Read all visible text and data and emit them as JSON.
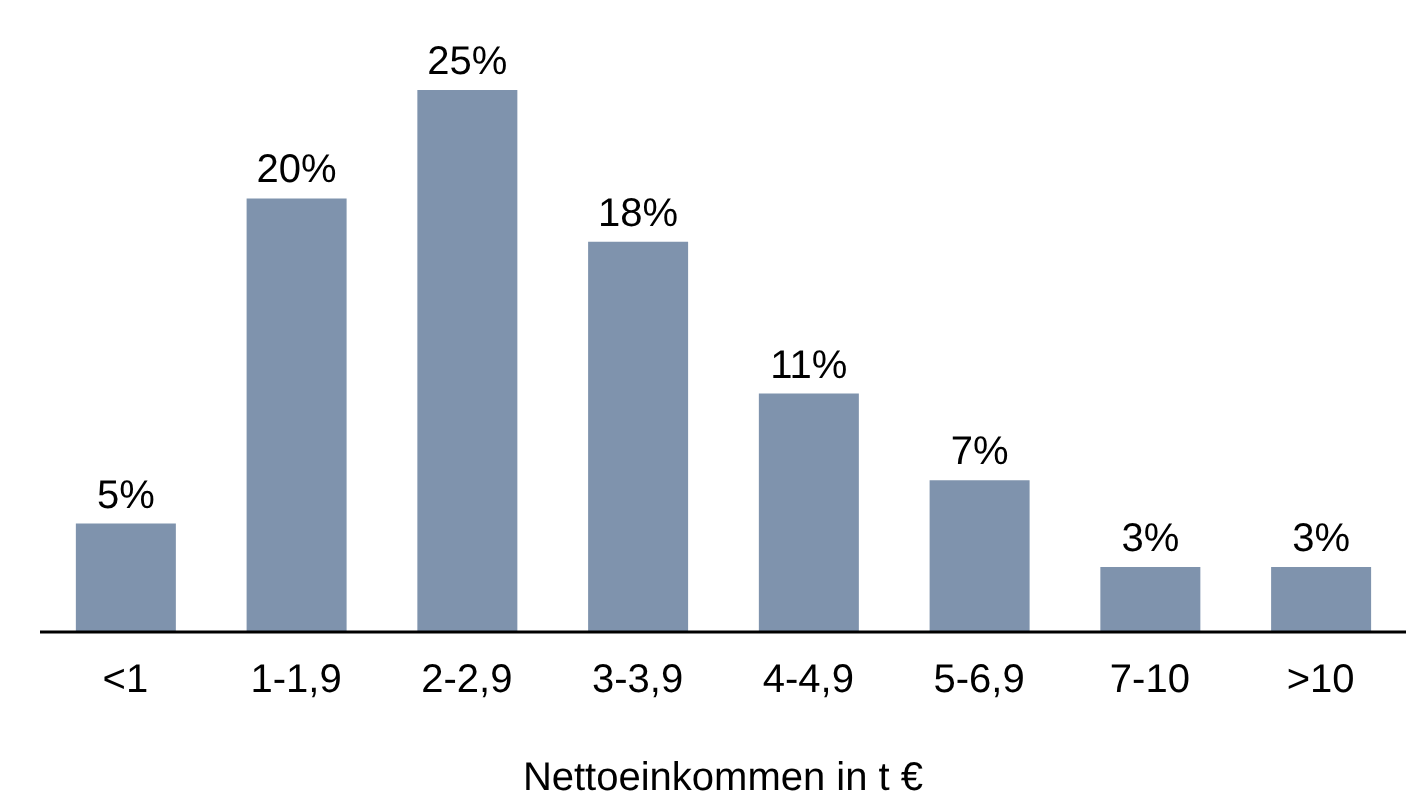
{
  "chart_data": {
    "type": "bar",
    "xlabel": "Nettoeinkommen in t €",
    "categories": [
      "<1",
      "1-1,9",
      "2-2,9",
      "3-3,9",
      "4-4,9",
      "5-6,9",
      "7-10",
      ">10"
    ],
    "values": [
      5,
      20,
      25,
      18,
      11,
      7,
      3,
      3
    ],
    "value_labels": [
      "5%",
      "20%",
      "25%",
      "18%",
      "11%",
      "7%",
      "3%",
      "3%"
    ],
    "color": "#7f93ad",
    "grid": false,
    "legend": false
  }
}
